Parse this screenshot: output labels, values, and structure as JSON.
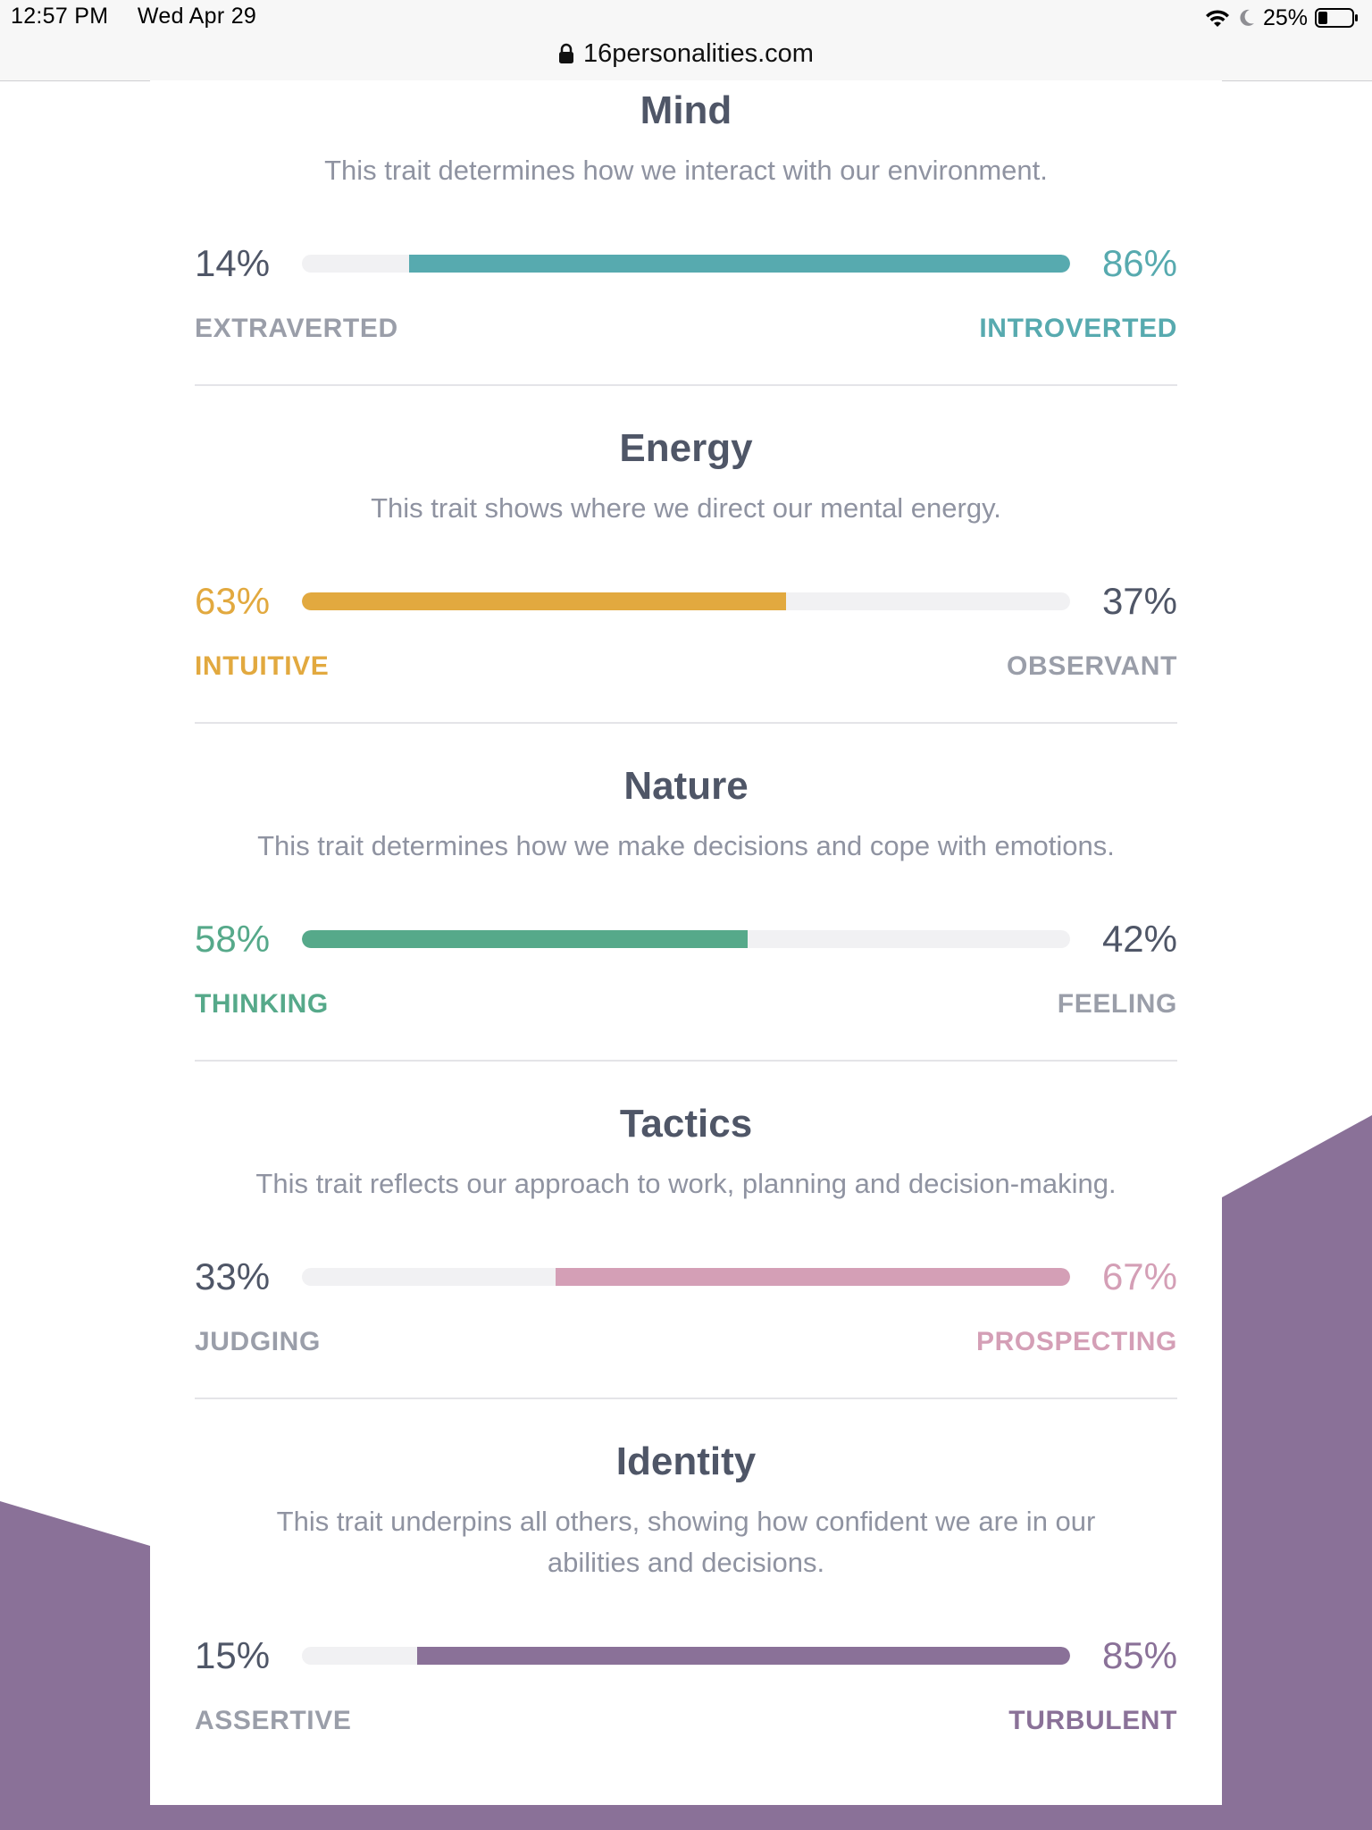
{
  "status_bar": {
    "time": "12:57 PM",
    "date": "Wed Apr 29",
    "battery": "25%",
    "url": "16personalities.com"
  },
  "colors": {
    "mind": "#57aaaf",
    "energy": "#e2a93f",
    "nature": "#56a98a",
    "tactics": "#d49fb6",
    "identity": "#8a7198",
    "neutral_text": "#4f5667",
    "muted_label": "#9a9ea9",
    "background_shape": "#8a7198"
  },
  "traits": [
    {
      "title": "Mind",
      "description": "This trait determines how we interact with our environment.",
      "left": {
        "percent": "14%",
        "label": "EXTRAVERTED"
      },
      "right": {
        "percent": "86%",
        "label": "INTROVERTED"
      },
      "dominant": "right",
      "dominant_value": 0.86,
      "color": "#57aaaf"
    },
    {
      "title": "Energy",
      "description": "This trait shows where we direct our mental energy.",
      "left": {
        "percent": "63%",
        "label": "INTUITIVE"
      },
      "right": {
        "percent": "37%",
        "label": "OBSERVANT"
      },
      "dominant": "left",
      "dominant_value": 0.63,
      "color": "#e2a93f"
    },
    {
      "title": "Nature",
      "description": "This trait determines how we make decisions and cope with emotions.",
      "left": {
        "percent": "58%",
        "label": "THINKING"
      },
      "right": {
        "percent": "42%",
        "label": "FEELING"
      },
      "dominant": "left",
      "dominant_value": 0.58,
      "color": "#56a98a"
    },
    {
      "title": "Tactics",
      "description": "This trait reflects our approach to work, planning and decision-making.",
      "left": {
        "percent": "33%",
        "label": "JUDGING"
      },
      "right": {
        "percent": "67%",
        "label": "PROSPECTING"
      },
      "dominant": "right",
      "dominant_value": 0.67,
      "color": "#d49fb6"
    },
    {
      "title": "Identity",
      "description": "This trait underpins all others, showing how confident we are in our abilities and decisions.",
      "left": {
        "percent": "15%",
        "label": "ASSERTIVE"
      },
      "right": {
        "percent": "85%",
        "label": "TURBULENT"
      },
      "dominant": "right",
      "dominant_value": 0.85,
      "color": "#8a7198"
    }
  ]
}
